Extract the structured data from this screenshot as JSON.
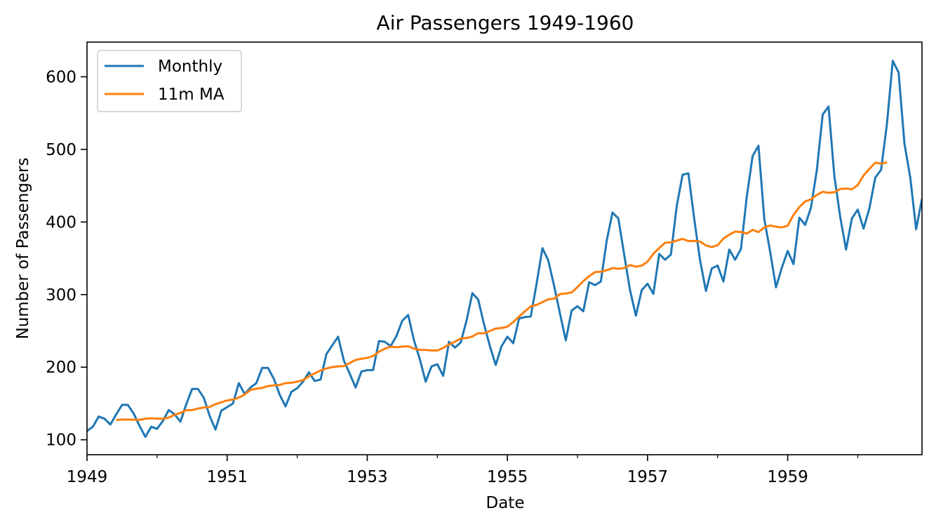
{
  "chart_data": {
    "type": "line",
    "title": "Air Passengers 1949-1960",
    "xlabel": "Date",
    "ylabel": "Number of Passengers",
    "x_unit": "month",
    "x_start": "1949-01",
    "x_end": "1960-12",
    "xlim": [
      "1949-01",
      "1960-12"
    ],
    "ylim": [
      79.4,
      647.8
    ],
    "x_major_ticks": [
      "1949",
      "1951",
      "1953",
      "1955",
      "1957",
      "1959"
    ],
    "x_minor_ticks": [
      "1950",
      "1952",
      "1954",
      "1956",
      "1958",
      "1960"
    ],
    "y_ticks": [
      100,
      200,
      300,
      400,
      500,
      600
    ],
    "grid": false,
    "legend": "upper-left",
    "colors": {
      "Monthly": "#1f77b4",
      "11m MA": "#ff7f0e"
    },
    "series": [
      {
        "name": "Monthly",
        "start": "1949-01",
        "values": [
          112,
          118,
          132,
          129,
          121,
          135,
          148,
          148,
          136,
          119,
          104,
          118,
          115,
          126,
          141,
          135,
          125,
          149,
          170,
          170,
          158,
          133,
          114,
          140,
          145,
          150,
          178,
          163,
          172,
          178,
          199,
          199,
          184,
          162,
          146,
          166,
          171,
          180,
          193,
          181,
          183,
          218,
          230,
          242,
          209,
          191,
          172,
          194,
          196,
          196,
          236,
          235,
          229,
          243,
          264,
          272,
          237,
          211,
          180,
          201,
          204,
          188,
          235,
          227,
          234,
          264,
          302,
          293,
          259,
          229,
          203,
          229,
          242,
          233,
          267,
          269,
          270,
          315,
          364,
          347,
          312,
          274,
          237,
          278,
          284,
          277,
          317,
          313,
          318,
          374,
          413,
          405,
          355,
          306,
          271,
          306,
          315,
          301,
          356,
          348,
          355,
          422,
          465,
          467,
          404,
          347,
          305,
          336,
          340,
          318,
          362,
          348,
          363,
          435,
          491,
          505,
          404,
          359,
          310,
          337,
          360,
          342,
          406,
          396,
          420,
          472,
          548,
          559,
          463,
          407,
          362,
          405,
          417,
          391,
          419,
          461,
          472,
          535,
          622,
          606,
          508,
          461,
          390,
          432
        ]
      },
      {
        "name": "11m MA",
        "start": "1949-06",
        "values": [
          127.3,
          127.9,
          127.8,
          127.6,
          127.5,
          128.9,
          129.7,
          129.0,
          128.9,
          130.5,
          134.4,
          137.0,
          140.7,
          140.9,
          143.0,
          144.4,
          145.2,
          149.1,
          151.6,
          154.2,
          155.4,
          158.1,
          162.4,
          168.8,
          170.3,
          171.5,
          174.0,
          175.0,
          175.5,
          178.0,
          178.5,
          180.1,
          182.1,
          187.5,
          191.6,
          195.5,
          198.2,
          200.1,
          201.1,
          201.5,
          205.8,
          210.0,
          211.6,
          212.8,
          215.3,
          221.2,
          225.6,
          228.1,
          227.5,
          228.3,
          228.9,
          225.6,
          223.8,
          223.8,
          223.0,
          223.0,
          226.5,
          231.2,
          235.1,
          239.5,
          240.2,
          242.3,
          246.9,
          246.7,
          249.9,
          253.2,
          254.0,
          255.8,
          262.1,
          269.7,
          277.0,
          283.8,
          285.8,
          289.5,
          293.5,
          294.3,
          300.7,
          301.5,
          303.0,
          310.3,
          318.5,
          325.3,
          331.0,
          331.5,
          333.5,
          336.6,
          335.4,
          336.6,
          340.6,
          338.5,
          339.8,
          345.5,
          356.3,
          364.1,
          371.3,
          372.0,
          374.4,
          376.7,
          373.6,
          374.0,
          373.0,
          367.7,
          365.5,
          367.9,
          377.1,
          382.6,
          386.8,
          386.2,
          384.0,
          389.2,
          386.1,
          392.5,
          395.2,
          393.6,
          392.5,
          395.0,
          409.8,
          420.6,
          428.3,
          431.3,
          437.4,
          441.6,
          440.2,
          441.0,
          445.5,
          446.0,
          445.1,
          450.8,
          464.1,
          473.2,
          481.7,
          480.5,
          482.0
        ]
      }
    ]
  }
}
